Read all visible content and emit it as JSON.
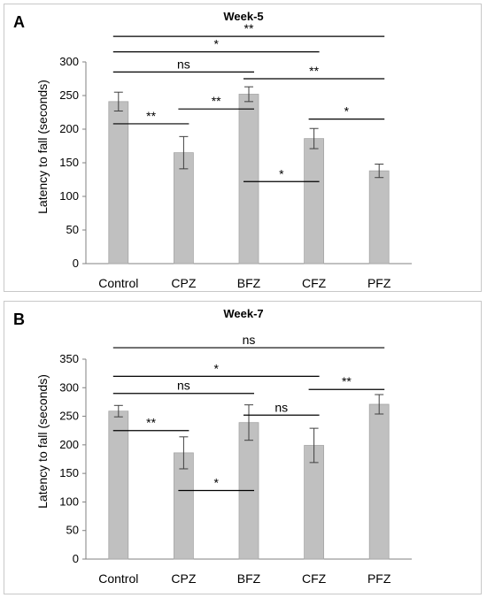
{
  "chart_data": [
    {
      "type": "bar",
      "panel_label": "A",
      "title": "Week-5",
      "ylabel": "Latency to fall (seconds)",
      "xlabel": "",
      "categories": [
        "Control",
        "CPZ",
        "BFZ",
        "CFZ",
        "PFZ"
      ],
      "values": [
        241,
        165,
        252,
        186,
        138
      ],
      "errors": [
        14,
        24,
        11,
        15,
        10
      ],
      "ylim": [
        0,
        300
      ],
      "yticks": [
        0,
        50,
        100,
        150,
        200,
        250,
        300
      ],
      "bar_color": "#c0c0c0",
      "grid": false,
      "legend": "none",
      "significance": [
        {
          "from": 0,
          "to": 4,
          "label": "**",
          "y": 338
        },
        {
          "from": 0,
          "to": 3,
          "label": "*",
          "y": 315
        },
        {
          "from": 0,
          "to": 2,
          "label": "ns",
          "y": 285
        },
        {
          "from": 2,
          "to": 4,
          "label": "**",
          "y": 275
        },
        {
          "from": 0,
          "to": 1,
          "label": "**",
          "y": 208
        },
        {
          "from": 1,
          "to": 2,
          "label": "**",
          "y": 230
        },
        {
          "from": 3,
          "to": 4,
          "label": "*",
          "y": 215
        },
        {
          "from": 2,
          "to": 3,
          "label": "*",
          "y": 122
        }
      ]
    },
    {
      "type": "bar",
      "panel_label": "B",
      "title": "Week-7",
      "ylabel": "Latency to fall (seconds)",
      "xlabel": "",
      "categories": [
        "Control",
        "CPZ",
        "BFZ",
        "CFZ",
        "PFZ"
      ],
      "values": [
        259,
        186,
        239,
        199,
        271
      ],
      "errors": [
        10,
        28,
        31,
        30,
        17
      ],
      "ylim": [
        0,
        350
      ],
      "yticks": [
        0,
        50,
        100,
        150,
        200,
        250,
        300,
        350
      ],
      "bar_color": "#c0c0c0",
      "grid": false,
      "legend": "none",
      "significance": [
        {
          "from": 0,
          "to": 4,
          "label": "ns",
          "y": 370
        },
        {
          "from": 0,
          "to": 3,
          "label": "*",
          "y": 320
        },
        {
          "from": 0,
          "to": 2,
          "label": "ns",
          "y": 290
        },
        {
          "from": 3,
          "to": 4,
          "label": "**",
          "y": 297
        },
        {
          "from": 2,
          "to": 3,
          "label": "ns",
          "y": 252
        },
        {
          "from": 0,
          "to": 1,
          "label": "**",
          "y": 225
        },
        {
          "from": 1,
          "to": 2,
          "label": "*",
          "y": 120
        }
      ]
    }
  ]
}
